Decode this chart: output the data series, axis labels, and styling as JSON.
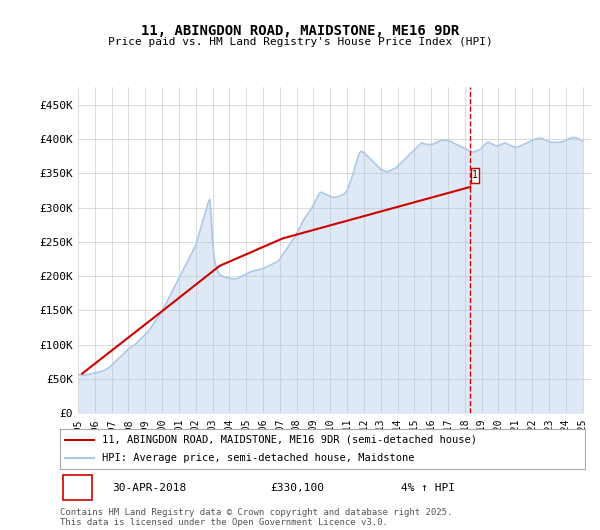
{
  "title": "11, ABINGDON ROAD, MAIDSTONE, ME16 9DR",
  "subtitle": "Price paid vs. HM Land Registry's House Price Index (HPI)",
  "ylabel_ticks": [
    "£0",
    "£50K",
    "£100K",
    "£150K",
    "£200K",
    "£250K",
    "£300K",
    "£350K",
    "£400K",
    "£450K"
  ],
  "ytick_values": [
    0,
    50000,
    100000,
    150000,
    200000,
    250000,
    300000,
    350000,
    400000,
    450000
  ],
  "ylim": [
    0,
    475000
  ],
  "xlim_start": 1995,
  "xlim_end": 2025.5,
  "xticks": [
    1995,
    1996,
    1997,
    1998,
    1999,
    2000,
    2001,
    2002,
    2003,
    2004,
    2005,
    2006,
    2007,
    2008,
    2009,
    2010,
    2011,
    2012,
    2013,
    2014,
    2015,
    2016,
    2017,
    2018,
    2019,
    2020,
    2021,
    2022,
    2023,
    2024,
    2025
  ],
  "hpi_color": "#adc8e6",
  "price_color": "#cc0000",
  "marker_color": "#cc0000",
  "dashed_line_color": "#cc0000",
  "annotation_date": "30-APR-2018",
  "annotation_price": "£330,100",
  "annotation_hpi": "4% ↑ HPI",
  "legend1": "11, ABINGDON ROAD, MAIDSTONE, ME16 9DR (semi-detached house)",
  "legend2": "HPI: Average price, semi-detached house, Maidstone",
  "footer1": "Contains HM Land Registry data © Crown copyright and database right 2025.",
  "footer2": "This data is licensed under the Open Government Licence v3.0.",
  "background_color": "#ffffff",
  "plot_bg_color": "#ffffff",
  "grid_color": "#cccccc",
  "price_years": [
    1995.25,
    2000.0,
    2003.42,
    2007.17,
    2018.33
  ],
  "price_values": [
    58000,
    149000,
    215000,
    255000,
    330100
  ],
  "sale_marker_x": 2018.33,
  "sale_marker_y": 330100,
  "vline_x": 2018.33
}
